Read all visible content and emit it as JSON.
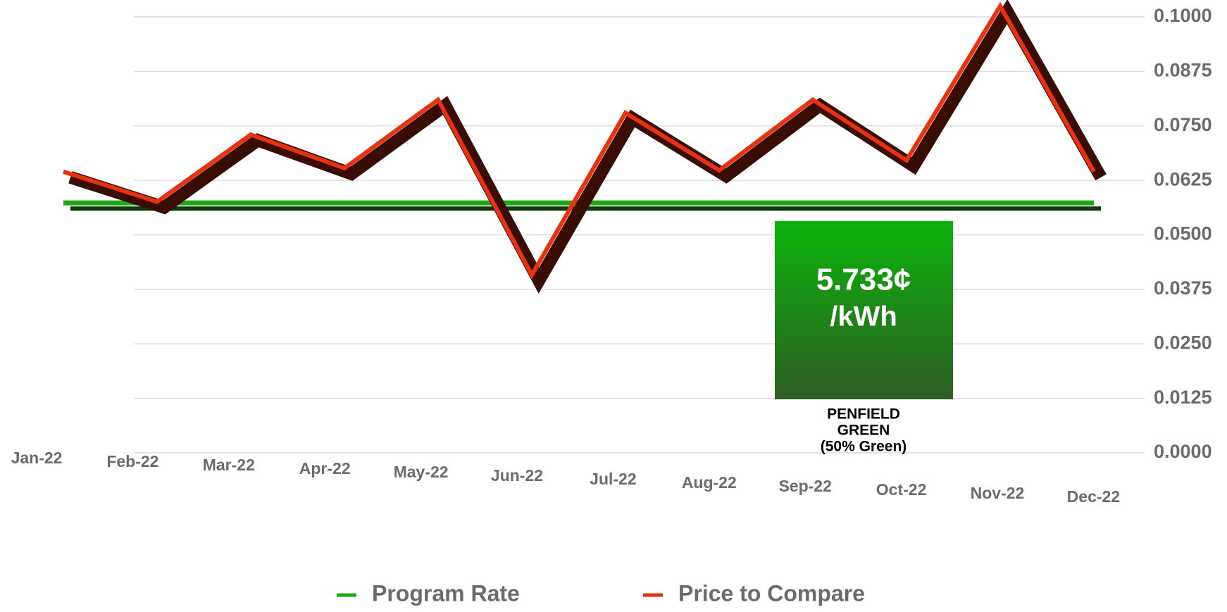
{
  "chart_data": {
    "type": "line",
    "categories": [
      "Jan-22",
      "Feb-22",
      "Mar-22",
      "Apr-22",
      "May-22",
      "Jun-22",
      "Jul-22",
      "Aug-22",
      "Sep-22",
      "Oct-22",
      "Nov-22",
      "Dec-22"
    ],
    "series": [
      {
        "name": "Program Rate",
        "color": "#1fa814",
        "values": [
          0.05733,
          0.05733,
          0.05733,
          0.05733,
          0.05733,
          0.05733,
          0.05733,
          0.05733,
          0.05733,
          0.05733,
          0.05733,
          0.05733
        ]
      },
      {
        "name": "Price to Compare",
        "color": "#e8320f",
        "values": [
          0.0645,
          0.0576,
          0.073,
          0.0653,
          0.081,
          0.0408,
          0.078,
          0.0648,
          0.081,
          0.0671,
          0.1025,
          0.0645
        ]
      }
    ],
    "ylim": [
      0,
      0.1
    ],
    "yticks": [
      {
        "value": 0,
        "label": "0.0000"
      },
      {
        "value": 0.0125,
        "label": "0.0125"
      },
      {
        "value": 0.025,
        "label": "0.0250"
      },
      {
        "value": 0.0375,
        "label": "0.0375"
      },
      {
        "value": 0.05,
        "label": "0.0500"
      },
      {
        "value": 0.0625,
        "label": "0.0625"
      },
      {
        "value": 0.075,
        "label": "0.0750"
      },
      {
        "value": 0.0875,
        "label": "0.0875"
      },
      {
        "value": 0.1,
        "label": "0.1000"
      }
    ],
    "grid": true,
    "annotation": {
      "rate": "5.733¢",
      "unit": "/kWh",
      "line1": "PENFIELD",
      "line2": "GREEN",
      "line3": "(50% Green)"
    }
  }
}
